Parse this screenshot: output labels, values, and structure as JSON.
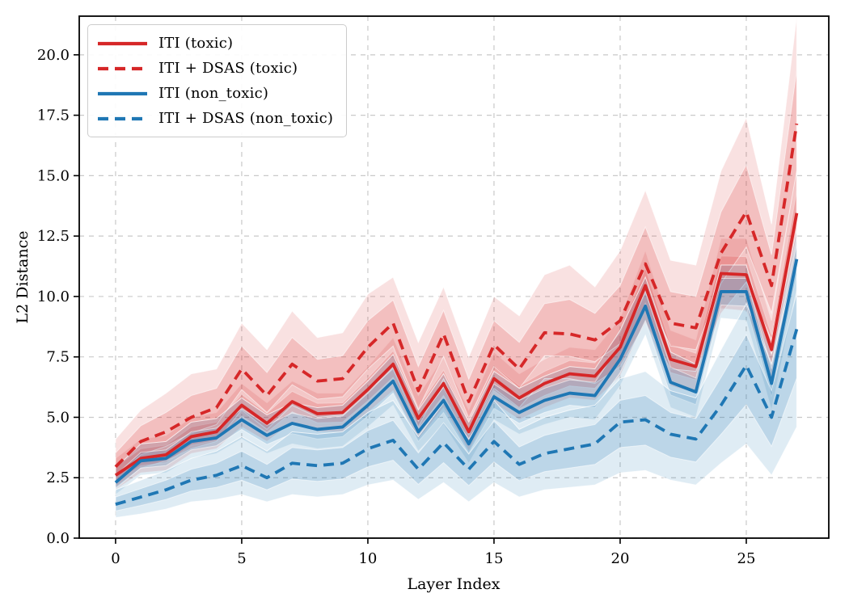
{
  "chart_data": {
    "type": "line",
    "title": "",
    "xlabel": "Layer Index",
    "ylabel": "L2 Distance",
    "grid": true,
    "legend_position": "upper left",
    "xlim": [
      -1.44,
      28.27
    ],
    "ylim": [
      0,
      21.6
    ],
    "xticks": [
      0,
      5,
      10,
      15,
      20,
      25
    ],
    "xtick_labels": [
      "0",
      "5",
      "10",
      "15",
      "20",
      "25"
    ],
    "yticks": [
      0,
      2.5,
      5,
      7.5,
      10,
      12.5,
      15,
      17.5,
      20
    ],
    "ytick_labels": [
      "0.0",
      "2.5",
      "5.0",
      "7.5",
      "10.0",
      "12.5",
      "15.0",
      "17.5",
      "20.0"
    ],
    "x": [
      0,
      1,
      2,
      3,
      4,
      5,
      6,
      7,
      8,
      9,
      10,
      11,
      12,
      13,
      14,
      15,
      16,
      17,
      18,
      19,
      20,
      21,
      22,
      23,
      24,
      25,
      26,
      27
    ],
    "series": [
      {
        "name": "ITI (toxic)",
        "style": "solid",
        "color": "#d62728",
        "values": [
          2.6,
          3.3,
          3.45,
          4.2,
          4.4,
          5.5,
          4.75,
          5.65,
          5.15,
          5.2,
          6.15,
          7.2,
          4.95,
          6.4,
          4.4,
          6.6,
          5.8,
          6.4,
          6.8,
          6.7,
          7.9,
          10.45,
          7.4,
          7.1,
          10.95,
          10.9,
          7.8,
          13.45
        ],
        "band_upper": [
          3.3,
          4.1,
          4.25,
          5.0,
          5.2,
          6.4,
          5.6,
          6.5,
          6.0,
          6.0,
          7.1,
          8.3,
          5.9,
          7.5,
          5.3,
          7.7,
          6.8,
          7.4,
          7.9,
          7.8,
          9.1,
          11.9,
          8.6,
          8.2,
          12.4,
          12.4,
          9.0,
          15.3
        ],
        "band_lower": [
          2.0,
          2.7,
          2.8,
          3.5,
          3.7,
          4.6,
          4.0,
          4.8,
          4.4,
          4.4,
          5.2,
          6.1,
          4.1,
          5.4,
          3.6,
          5.6,
          4.9,
          5.4,
          5.8,
          5.7,
          6.7,
          9.0,
          6.3,
          6.0,
          9.5,
          9.4,
          6.6,
          11.6
        ]
      },
      {
        "name": "ITI + DSAS (toxic)",
        "style": "dashed",
        "color": "#d62728",
        "values": [
          2.95,
          4.0,
          4.4,
          5.0,
          5.4,
          7.0,
          5.9,
          7.2,
          6.5,
          6.6,
          7.9,
          8.9,
          6.1,
          8.45,
          5.65,
          8.0,
          7.0,
          8.5,
          8.45,
          8.2,
          9.0,
          11.35,
          8.9,
          8.7,
          11.8,
          13.5,
          10.45,
          17.15
        ],
        "band_upper": [
          4.1,
          5.3,
          6.0,
          6.8,
          7.0,
          8.9,
          7.8,
          9.4,
          8.3,
          8.5,
          10.1,
          10.8,
          8.1,
          10.4,
          7.5,
          10.0,
          9.2,
          10.9,
          11.3,
          10.4,
          11.9,
          14.4,
          11.5,
          11.3,
          15.2,
          17.4,
          13.0,
          21.6
        ],
        "band_lower": [
          2.1,
          2.9,
          3.2,
          3.7,
          4.0,
          5.3,
          4.5,
          5.5,
          5.0,
          5.1,
          6.1,
          7.0,
          4.6,
          6.6,
          4.3,
          6.2,
          5.4,
          6.6,
          6.6,
          6.4,
          7.1,
          8.9,
          7.0,
          6.9,
          9.3,
          10.6,
          8.2,
          13.3
        ]
      },
      {
        "name": "ITI (non_toxic)",
        "style": "solid",
        "color": "#1f77b4",
        "values": [
          2.3,
          3.2,
          3.3,
          4.0,
          4.15,
          4.9,
          4.25,
          4.75,
          4.5,
          4.6,
          5.5,
          6.5,
          4.4,
          5.7,
          3.9,
          5.85,
          5.2,
          5.7,
          6.0,
          5.9,
          7.4,
          9.6,
          6.45,
          6.05,
          10.2,
          10.2,
          6.4,
          11.55
        ],
        "band_upper": [
          2.9,
          3.9,
          4.0,
          4.8,
          4.95,
          5.8,
          5.1,
          5.6,
          5.4,
          5.5,
          6.5,
          7.6,
          5.3,
          6.8,
          4.8,
          6.9,
          6.2,
          6.7,
          7.1,
          7.0,
          8.6,
          10.8,
          7.7,
          7.2,
          11.3,
          11.3,
          7.6,
          12.8
        ],
        "band_lower": [
          1.8,
          2.6,
          2.7,
          3.3,
          3.5,
          4.1,
          3.5,
          3.9,
          3.7,
          3.8,
          4.6,
          5.5,
          3.6,
          4.7,
          3.1,
          4.9,
          4.3,
          4.7,
          5.0,
          4.9,
          6.3,
          8.4,
          5.4,
          5.0,
          9.1,
          9.0,
          5.3,
          10.3
        ]
      },
      {
        "name": "ITI + DSAS (non_toxic)",
        "style": "dashed",
        "color": "#1f77b4",
        "values": [
          1.4,
          1.7,
          2.0,
          2.4,
          2.6,
          3.0,
          2.5,
          3.1,
          3.0,
          3.1,
          3.7,
          4.05,
          2.85,
          3.95,
          2.85,
          4.0,
          3.05,
          3.5,
          3.7,
          3.9,
          4.8,
          4.9,
          4.3,
          4.1,
          5.5,
          7.15,
          5.0,
          8.65
        ],
        "band_upper": [
          2.0,
          2.4,
          2.8,
          3.3,
          3.6,
          4.2,
          3.6,
          4.4,
          4.3,
          4.4,
          5.2,
          5.7,
          4.2,
          5.6,
          4.1,
          5.7,
          4.5,
          5.0,
          5.3,
          5.5,
          6.6,
          6.9,
          6.1,
          5.8,
          7.8,
          9.7,
          7.2,
          11.6
        ],
        "band_lower": [
          0.85,
          1.0,
          1.2,
          1.5,
          1.6,
          1.8,
          1.5,
          1.8,
          1.7,
          1.8,
          2.2,
          2.4,
          1.6,
          2.3,
          1.5,
          2.3,
          1.7,
          2.0,
          2.1,
          2.2,
          2.7,
          2.8,
          2.4,
          2.2,
          3.1,
          3.9,
          2.6,
          4.6
        ]
      }
    ],
    "colors": {
      "grid": "#c9c9c9",
      "spine": "#000000",
      "background": "#ffffff",
      "legend_border": "#cccccc",
      "band_edge": "#ffffff"
    }
  }
}
